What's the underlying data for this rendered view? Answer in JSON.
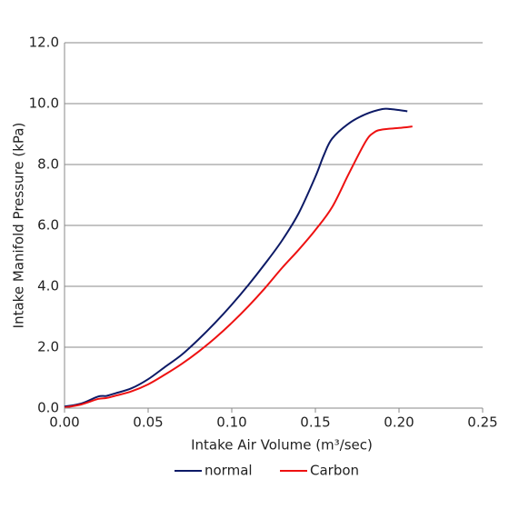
{
  "chart_data": {
    "type": "line",
    "x_label": "Intake Air Volume (m³/sec)",
    "y_label": "Intake Manifold Pressure (kPa)",
    "xlim": [
      0,
      0.25
    ],
    "ylim": [
      0,
      12
    ],
    "xticks": [
      {
        "value": 0,
        "label": "0.00"
      },
      {
        "value": 0.05,
        "label": "0.05"
      },
      {
        "value": 0.1,
        "label": "0.10"
      },
      {
        "value": 0.15,
        "label": "0.15"
      },
      {
        "value": 0.2,
        "label": "0.20"
      },
      {
        "value": 0.25,
        "label": "0.25"
      }
    ],
    "yticks": [
      {
        "value": 0,
        "label": "0.0"
      },
      {
        "value": 2,
        "label": "2.0"
      },
      {
        "value": 4,
        "label": "4.0"
      },
      {
        "value": 6,
        "label": "6.0"
      },
      {
        "value": 8,
        "label": "8.0"
      },
      {
        "value": 10,
        "label": "10.0"
      },
      {
        "value": 12,
        "label": "12.0"
      }
    ],
    "grid": true,
    "legend": "bottom",
    "series": [
      {
        "name": "normal",
        "color": "#0d1a66",
        "x": [
          0,
          0.01,
          0.02,
          0.025,
          0.03,
          0.04,
          0.05,
          0.06,
          0.07,
          0.08,
          0.09,
          0.1,
          0.11,
          0.12,
          0.13,
          0.14,
          0.15,
          0.155,
          0.16,
          0.17,
          0.18,
          0.19,
          0.195,
          0.205
        ],
        "values": [
          0.05,
          0.15,
          0.38,
          0.4,
          0.48,
          0.65,
          0.95,
          1.35,
          1.75,
          2.25,
          2.8,
          3.4,
          4.05,
          4.75,
          5.5,
          6.4,
          7.6,
          8.3,
          8.85,
          9.35,
          9.65,
          9.82,
          9.82,
          9.75
        ]
      },
      {
        "name": "Carbon",
        "color": "#ee1111",
        "x": [
          0,
          0.01,
          0.02,
          0.025,
          0.03,
          0.04,
          0.05,
          0.06,
          0.07,
          0.08,
          0.09,
          0.1,
          0.11,
          0.12,
          0.13,
          0.14,
          0.15,
          0.16,
          0.17,
          0.18,
          0.185,
          0.19,
          0.2,
          0.208
        ],
        "values": [
          0.02,
          0.12,
          0.3,
          0.33,
          0.4,
          0.55,
          0.78,
          1.1,
          1.45,
          1.85,
          2.3,
          2.8,
          3.35,
          3.95,
          4.6,
          5.2,
          5.85,
          6.6,
          7.7,
          8.75,
          9.05,
          9.15,
          9.2,
          9.25
        ]
      }
    ]
  }
}
